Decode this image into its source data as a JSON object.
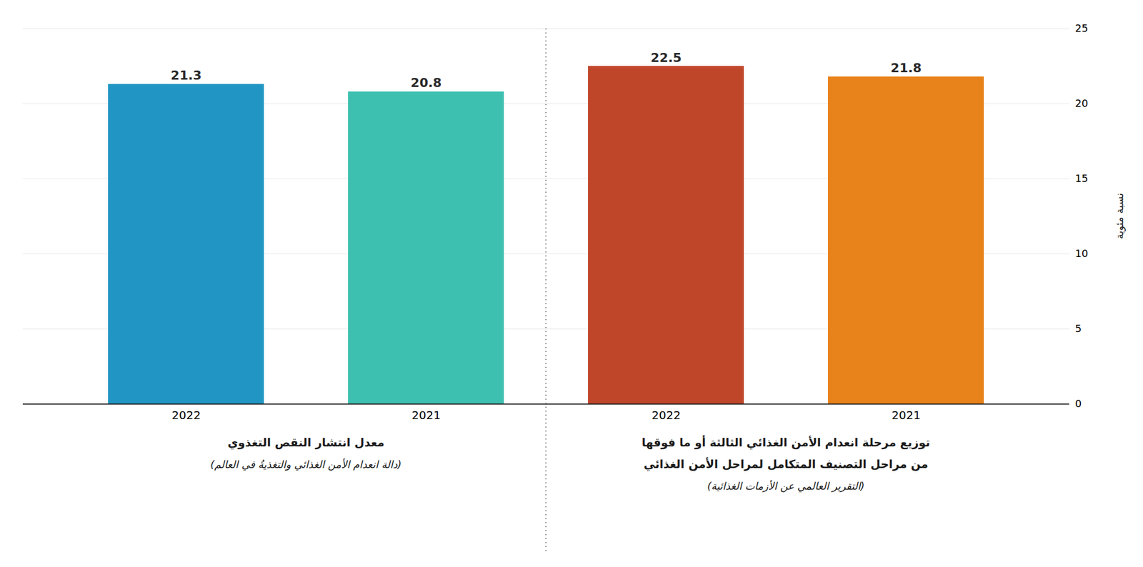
{
  "chart_data": {
    "type": "bar",
    "categories": [
      "2022",
      "2021",
      "2022",
      "2021"
    ],
    "values": [
      21.3,
      20.8,
      22.5,
      21.8
    ],
    "colors": [
      "#2196C4",
      "#3EC0B0",
      "#C0462A",
      "#E8821A"
    ],
    "ylim": [
      0,
      25
    ],
    "yticks": [
      0,
      5,
      10,
      15,
      20,
      25
    ],
    "grid": true,
    "data_labels": true,
    "ylabel": "نسبة مئوية",
    "annotations": [
      {
        "text": [
          "معدل انتشار النقص التغذوي",
          "(دالة انعدام الأمن الغذائي والتغذيةُ في العالم)"
        ]
      },
      {
        "text": [
          "توزيع مرحلة انعدام الأمن الغذائي الثالثة أو ما فوقها",
          "من مراحل التصنيف المتكامل لمراحل الأمن الغذائي",
          "(التقرير العالمي عن الأزمات الغذائية)"
        ]
      }
    ]
  }
}
